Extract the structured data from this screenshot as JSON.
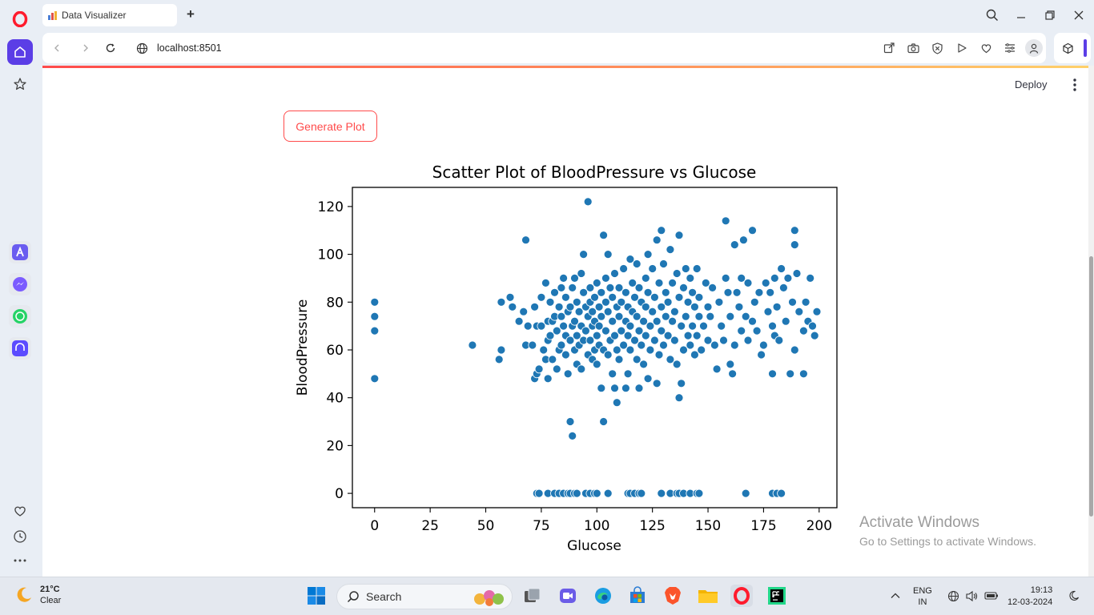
{
  "browser": {
    "tab_title": "Data Visualizer",
    "url": "localhost:8501"
  },
  "app": {
    "deploy_label": "Deploy",
    "generate_button": "Generate Plot"
  },
  "chart_data": {
    "type": "scatter",
    "title": "Scatter Plot of BloodPressure vs Glucose",
    "xlabel": "Glucose",
    "ylabel": "BloodPressure",
    "xlim": [
      -10,
      208
    ],
    "ylim": [
      -6,
      128
    ],
    "xticks": [
      0,
      25,
      50,
      75,
      100,
      125,
      150,
      175,
      200
    ],
    "yticks": [
      0,
      20,
      40,
      60,
      80,
      100,
      120
    ],
    "color": "#1f77b4",
    "grid": false,
    "points": [
      [
        0,
        80
      ],
      [
        0,
        74
      ],
      [
        0,
        68
      ],
      [
        0,
        48
      ],
      [
        44,
        62
      ],
      [
        56,
        56
      ],
      [
        57,
        60
      ],
      [
        57,
        80
      ],
      [
        61,
        82
      ],
      [
        62,
        78
      ],
      [
        65,
        72
      ],
      [
        67,
        76
      ],
      [
        68,
        106
      ],
      [
        68,
        62
      ],
      [
        69,
        70
      ],
      [
        71,
        62
      ],
      [
        72,
        48
      ],
      [
        72,
        78
      ],
      [
        73,
        70
      ],
      [
        73,
        50
      ],
      [
        74,
        52
      ],
      [
        75,
        70
      ],
      [
        75,
        82
      ],
      [
        76,
        60
      ],
      [
        77,
        56
      ],
      [
        77,
        88
      ],
      [
        78,
        72
      ],
      [
        78,
        48
      ],
      [
        78,
        64
      ],
      [
        79,
        66
      ],
      [
        79,
        80
      ],
      [
        80,
        72
      ],
      [
        80,
        56
      ],
      [
        81,
        84
      ],
      [
        81,
        74
      ],
      [
        82,
        68
      ],
      [
        82,
        52
      ],
      [
        83,
        60
      ],
      [
        83,
        78
      ],
      [
        84,
        86
      ],
      [
        84,
        62
      ],
      [
        84,
        74
      ],
      [
        85,
        70
      ],
      [
        85,
        90
      ],
      [
        86,
        66
      ],
      [
        86,
        58
      ],
      [
        86,
        82
      ],
      [
        87,
        50
      ],
      [
        87,
        76
      ],
      [
        88,
        64
      ],
      [
        88,
        78
      ],
      [
        88,
        30
      ],
      [
        89,
        24
      ],
      [
        89,
        70
      ],
      [
        89,
        86
      ],
      [
        90,
        60
      ],
      [
        90,
        72
      ],
      [
        90,
        90
      ],
      [
        91,
        66
      ],
      [
        91,
        54
      ],
      [
        91,
        80
      ],
      [
        92,
        76
      ],
      [
        92,
        62
      ],
      [
        93,
        92
      ],
      [
        93,
        70
      ],
      [
        93,
        52
      ],
      [
        94,
        100
      ],
      [
        94,
        64
      ],
      [
        94,
        84
      ],
      [
        95,
        68
      ],
      [
        95,
        78
      ],
      [
        96,
        58
      ],
      [
        96,
        122
      ],
      [
        96,
        74
      ],
      [
        97,
        80
      ],
      [
        97,
        64
      ],
      [
        97,
        86
      ],
      [
        98,
        70
      ],
      [
        98,
        56
      ],
      [
        98,
        76
      ],
      [
        99,
        82
      ],
      [
        99,
        60
      ],
      [
        99,
        72
      ],
      [
        100,
        66
      ],
      [
        100,
        88
      ],
      [
        100,
        54
      ],
      [
        101,
        78
      ],
      [
        101,
        62
      ],
      [
        101,
        70
      ],
      [
        102,
        44
      ],
      [
        102,
        84
      ],
      [
        102,
        74
      ],
      [
        103,
        30
      ],
      [
        103,
        108
      ],
      [
        103,
        60
      ],
      [
        104,
        68
      ],
      [
        104,
        90
      ],
      [
        104,
        80
      ],
      [
        105,
        58
      ],
      [
        105,
        76
      ],
      [
        105,
        100
      ],
      [
        106,
        64
      ],
      [
        106,
        86
      ],
      [
        107,
        50
      ],
      [
        107,
        72
      ],
      [
        107,
        82
      ],
      [
        108,
        44
      ],
      [
        108,
        66
      ],
      [
        108,
        92
      ],
      [
        109,
        38
      ],
      [
        109,
        78
      ],
      [
        109,
        60
      ],
      [
        110,
        74
      ],
      [
        110,
        86
      ],
      [
        110,
        56
      ],
      [
        111,
        68
      ],
      [
        111,
        80
      ],
      [
        112,
        62
      ],
      [
        112,
        94
      ],
      [
        113,
        72
      ],
      [
        113,
        44
      ],
      [
        113,
        84
      ],
      [
        114,
        50
      ],
      [
        114,
        66
      ],
      [
        114,
        78
      ],
      [
        115,
        70
      ],
      [
        115,
        98
      ],
      [
        115,
        60
      ],
      [
        116,
        76
      ],
      [
        116,
        88
      ],
      [
        117,
        64
      ],
      [
        117,
        82
      ],
      [
        118,
        56
      ],
      [
        118,
        74
      ],
      [
        118,
        96
      ],
      [
        119,
        44
      ],
      [
        119,
        68
      ],
      [
        119,
        86
      ],
      [
        120,
        62
      ],
      [
        120,
        80
      ],
      [
        121,
        72
      ],
      [
        121,
        54
      ],
      [
        122,
        90
      ],
      [
        122,
        66
      ],
      [
        122,
        78
      ],
      [
        123,
        48
      ],
      [
        123,
        100
      ],
      [
        123,
        84
      ],
      [
        124,
        70
      ],
      [
        124,
        60
      ],
      [
        125,
        76
      ],
      [
        125,
        94
      ],
      [
        126,
        64
      ],
      [
        126,
        82
      ],
      [
        127,
        46
      ],
      [
        127,
        106
      ],
      [
        127,
        72
      ],
      [
        128,
        58
      ],
      [
        128,
        88
      ],
      [
        129,
        110
      ],
      [
        129,
        68
      ],
      [
        129,
        78
      ],
      [
        130,
        96
      ],
      [
        130,
        62
      ],
      [
        131,
        84
      ],
      [
        131,
        74
      ],
      [
        132,
        66
      ],
      [
        132,
        80
      ],
      [
        133,
        102
      ],
      [
        133,
        56
      ],
      [
        134,
        72
      ],
      [
        134,
        88
      ],
      [
        135,
        64
      ],
      [
        135,
        76
      ],
      [
        136,
        54
      ],
      [
        136,
        92
      ],
      [
        137,
        40
      ],
      [
        137,
        108
      ],
      [
        137,
        82
      ],
      [
        138,
        46
      ],
      [
        138,
        70
      ],
      [
        139,
        60
      ],
      [
        139,
        86
      ],
      [
        140,
        74
      ],
      [
        140,
        94
      ],
      [
        141,
        66
      ],
      [
        141,
        80
      ],
      [
        142,
        62
      ],
      [
        142,
        90
      ],
      [
        143,
        70
      ],
      [
        143,
        84
      ],
      [
        144,
        58
      ],
      [
        144,
        78
      ],
      [
        145,
        94
      ],
      [
        145,
        66
      ],
      [
        146,
        74
      ],
      [
        146,
        82
      ],
      [
        147,
        60
      ],
      [
        148,
        70
      ],
      [
        149,
        88
      ],
      [
        150,
        64
      ],
      [
        150,
        78
      ],
      [
        151,
        74
      ],
      [
        152,
        86
      ],
      [
        153,
        62
      ],
      [
        154,
        52
      ],
      [
        155,
        80
      ],
      [
        156,
        70
      ],
      [
        157,
        64
      ],
      [
        158,
        114
      ],
      [
        158,
        90
      ],
      [
        159,
        84
      ],
      [
        160,
        54
      ],
      [
        160,
        74
      ],
      [
        161,
        50
      ],
      [
        162,
        104
      ],
      [
        162,
        62
      ],
      [
        163,
        84
      ],
      [
        164,
        78
      ],
      [
        165,
        90
      ],
      [
        165,
        68
      ],
      [
        166,
        106
      ],
      [
        167,
        74
      ],
      [
        168,
        88
      ],
      [
        168,
        64
      ],
      [
        170,
        110
      ],
      [
        170,
        72
      ],
      [
        171,
        80
      ],
      [
        172,
        68
      ],
      [
        173,
        84
      ],
      [
        174,
        58
      ],
      [
        175,
        62
      ],
      [
        176,
        88
      ],
      [
        177,
        76
      ],
      [
        178,
        84
      ],
      [
        179,
        50
      ],
      [
        179,
        70
      ],
      [
        180,
        66
      ],
      [
        180,
        90
      ],
      [
        181,
        78
      ],
      [
        182,
        64
      ],
      [
        183,
        94
      ],
      [
        184,
        86
      ],
      [
        185,
        72
      ],
      [
        186,
        90
      ],
      [
        187,
        50
      ],
      [
        188,
        80
      ],
      [
        189,
        110
      ],
      [
        189,
        104
      ],
      [
        189,
        60
      ],
      [
        190,
        92
      ],
      [
        191,
        76
      ],
      [
        193,
        50
      ],
      [
        193,
        68
      ],
      [
        194,
        80
      ],
      [
        195,
        72
      ],
      [
        196,
        90
      ],
      [
        197,
        70
      ],
      [
        198,
        66
      ],
      [
        199,
        76
      ],
      [
        73,
        0
      ],
      [
        74,
        0
      ],
      [
        78,
        0
      ],
      [
        81,
        0
      ],
      [
        83,
        0
      ],
      [
        85,
        0
      ],
      [
        87,
        0
      ],
      [
        88,
        0
      ],
      [
        90,
        0
      ],
      [
        91,
        0
      ],
      [
        95,
        0
      ],
      [
        97,
        0
      ],
      [
        99,
        0
      ],
      [
        100,
        0
      ],
      [
        105,
        0
      ],
      [
        114,
        0
      ],
      [
        115,
        0
      ],
      [
        117,
        0
      ],
      [
        119,
        0
      ],
      [
        120,
        0
      ],
      [
        129,
        0
      ],
      [
        133,
        0
      ],
      [
        136,
        0
      ],
      [
        137,
        0
      ],
      [
        139,
        0
      ],
      [
        142,
        0
      ],
      [
        145,
        0
      ],
      [
        146,
        0
      ],
      [
        167,
        0
      ],
      [
        179,
        0
      ],
      [
        181,
        0
      ],
      [
        183,
        0
      ]
    ]
  },
  "watermark": {
    "line1": "Activate Windows",
    "line2": "Go to Settings to activate Windows."
  },
  "taskbar": {
    "temperature": "21°C",
    "condition": "Clear",
    "search_label": "Search",
    "lang_line1": "ENG",
    "lang_line2": "IN",
    "time": "19:13",
    "date": "12-03-2024"
  }
}
